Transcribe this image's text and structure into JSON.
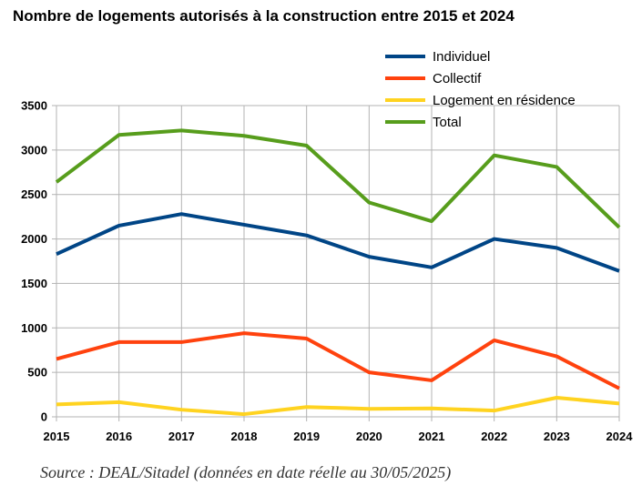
{
  "chart_data": {
    "type": "line",
    "title": "Nombre de logements autorisés à la construction entre 2015 et 2024",
    "xlabel": "",
    "ylabel": "",
    "categories": [
      "2015",
      "2016",
      "2017",
      "2018",
      "2019",
      "2020",
      "2021",
      "2022",
      "2023",
      "2024"
    ],
    "ylim": [
      0,
      3500
    ],
    "yticks": [
      0,
      500,
      1000,
      1500,
      2000,
      2500,
      3000,
      3500
    ],
    "grid": true,
    "legend_position": "top-right",
    "series": [
      {
        "name": "Individuel",
        "color": "#004586",
        "values": [
          1830,
          2150,
          2280,
          2160,
          2040,
          1800,
          1680,
          2000,
          1900,
          1640
        ]
      },
      {
        "name": "Collectif",
        "color": "#ff420e",
        "values": [
          650,
          840,
          840,
          940,
          880,
          500,
          410,
          860,
          680,
          320
        ]
      },
      {
        "name": "Logement en résidence",
        "color": "#ffd320",
        "values": [
          140,
          165,
          80,
          30,
          110,
          90,
          95,
          70,
          215,
          150
        ]
      },
      {
        "name": "Total",
        "color": "#579d1c",
        "values": [
          2640,
          3170,
          3220,
          3160,
          3050,
          2410,
          2200,
          2940,
          2810,
          2130
        ]
      }
    ]
  },
  "source_note": "Source : DEAL/Sitadel (données en date réelle au 30/05/2025)"
}
